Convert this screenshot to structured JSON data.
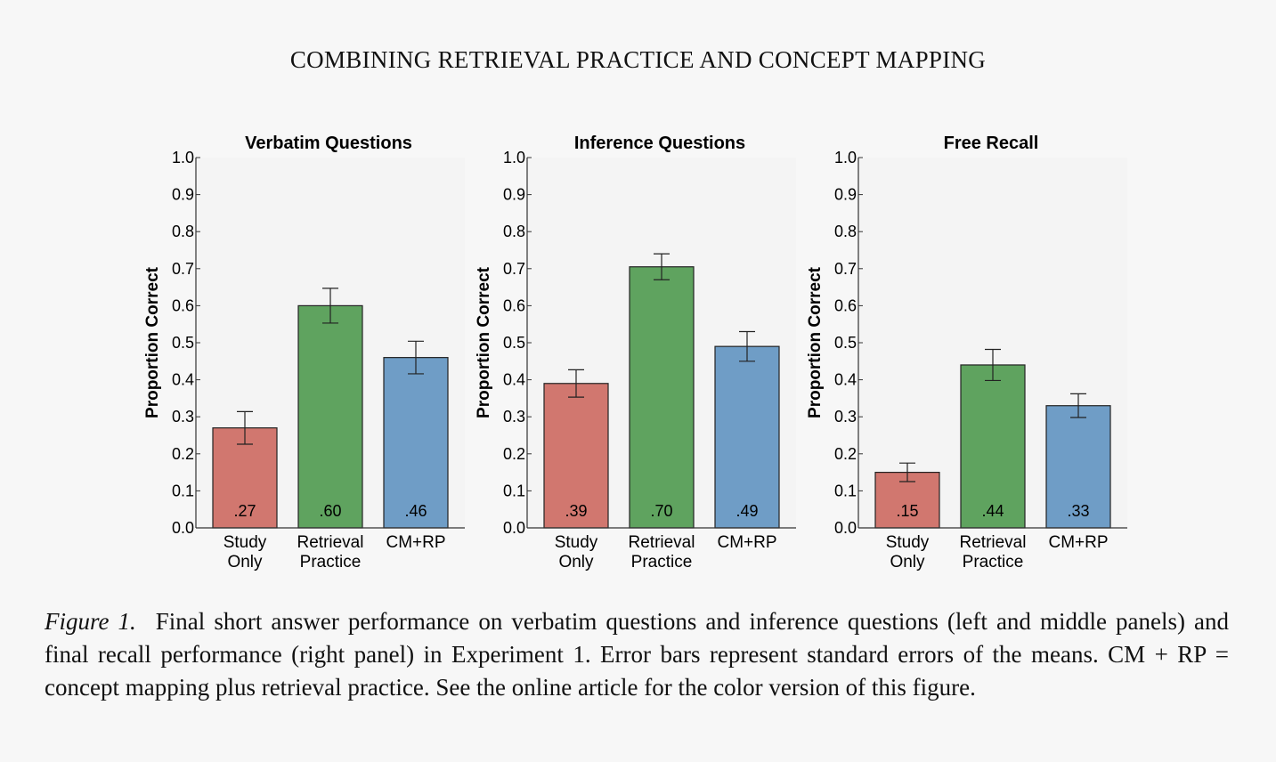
{
  "running_head": "COMBINING RETRIEVAL PRACTICE AND CONCEPT MAPPING",
  "caption": {
    "label": "Figure 1.",
    "text": "Final short answer performance on verbatim questions and inference questions (left and middle panels) and final recall performance (right panel) in Experiment 1. Error bars represent standard errors of the means. CM + RP = concept mapping plus retrieval practice. See the online article for the color version of this figure."
  },
  "colors": {
    "study_only": "#d1776f",
    "retrieval_practice": "#5fa35f",
    "cm_rp": "#6f9dc6"
  },
  "chart_data": [
    {
      "type": "bar",
      "title": "Verbatim Questions",
      "ylabel": "Proportion Correct",
      "ylim": [
        0,
        1.0
      ],
      "yticks": [
        "0.0",
        "0.1",
        "0.2",
        "0.3",
        "0.4",
        "0.5",
        "0.6",
        "0.7",
        "0.8",
        "0.9",
        "1.0"
      ],
      "categories": [
        [
          "Study",
          "Only"
        ],
        [
          "Retrieval",
          "Practice"
        ],
        [
          "CM+RP"
        ]
      ],
      "values": [
        0.27,
        0.6,
        0.46
      ],
      "value_labels": [
        ".27",
        ".60",
        ".46"
      ],
      "errors": [
        0.044,
        0.047,
        0.044
      ]
    },
    {
      "type": "bar",
      "title": "Inference Questions",
      "ylabel": "Proportion Correct",
      "ylim": [
        0,
        1.0
      ],
      "yticks": [
        "0.0",
        "0.1",
        "0.2",
        "0.3",
        "0.4",
        "0.5",
        "0.6",
        "0.7",
        "0.8",
        "0.9",
        "1.0"
      ],
      "categories": [
        [
          "Study",
          "Only"
        ],
        [
          "Retrieval",
          "Practice"
        ],
        [
          "CM+RP"
        ]
      ],
      "values": [
        0.39,
        0.705,
        0.49
      ],
      "value_labels": [
        ".39",
        ".70",
        ".49"
      ],
      "errors": [
        0.037,
        0.035,
        0.04
      ]
    },
    {
      "type": "bar",
      "title": "Free Recall",
      "ylabel": "Proportion Correct",
      "ylim": [
        0,
        1.0
      ],
      "yticks": [
        "0.0",
        "0.1",
        "0.2",
        "0.3",
        "0.4",
        "0.5",
        "0.6",
        "0.7",
        "0.8",
        "0.9",
        "1.0"
      ],
      "categories": [
        [
          "Study",
          "Only"
        ],
        [
          "Retrieval",
          "Practice"
        ],
        [
          "CM+RP"
        ]
      ],
      "values": [
        0.15,
        0.44,
        0.33
      ],
      "value_labels": [
        ".15",
        ".44",
        ".33"
      ],
      "errors": [
        0.025,
        0.042,
        0.032
      ]
    }
  ]
}
